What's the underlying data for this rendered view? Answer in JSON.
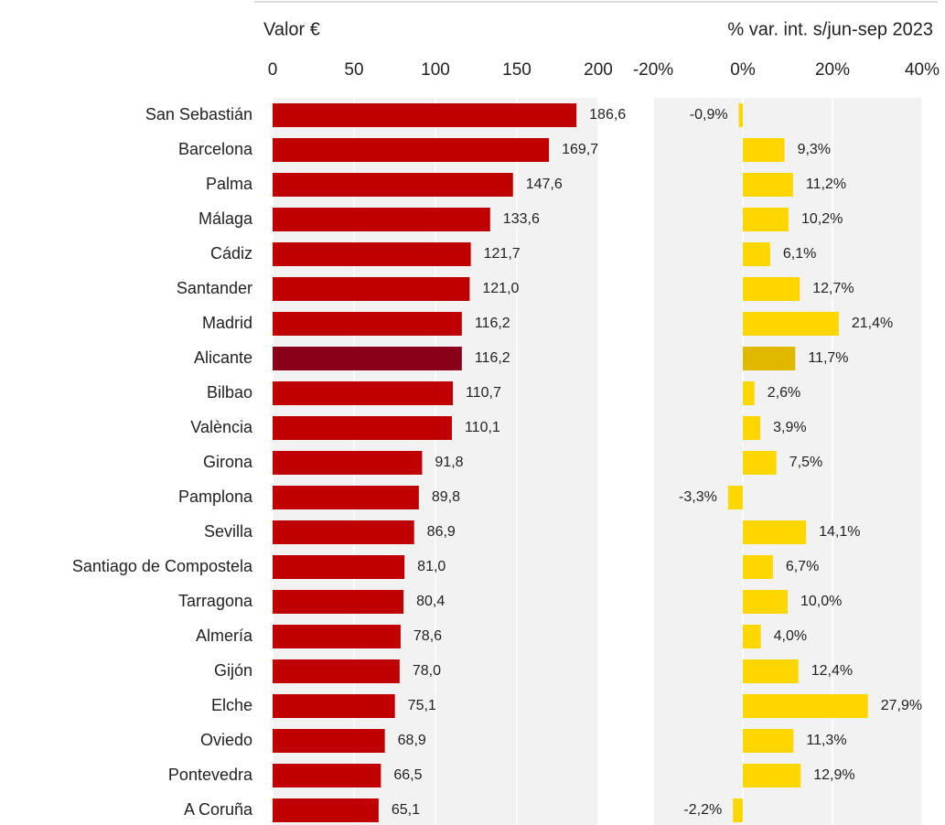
{
  "chart_data": [
    {
      "type": "bar",
      "orientation": "horizontal",
      "title": "Valor €",
      "categories": [
        "San Sebastián",
        "Barcelona",
        "Palma",
        "Málaga",
        "Cádiz",
        "Santander",
        "Madrid",
        "Alicante",
        "Bilbao",
        "València",
        "Girona",
        "Pamplona",
        "Sevilla",
        "Santiago de Compostela",
        "Tarragona",
        "Almería",
        "Gijón",
        "Elche",
        "Oviedo",
        "Pontevedra",
        "A Coruña"
      ],
      "values": [
        186.6,
        169.7,
        147.6,
        133.6,
        121.7,
        121.0,
        116.2,
        116.2,
        110.7,
        110.1,
        91.8,
        89.8,
        86.9,
        81.0,
        80.4,
        78.6,
        78.0,
        75.1,
        68.9,
        66.5,
        65.1
      ],
      "value_labels": [
        "186,6",
        "169,7",
        "147,6",
        "133,6",
        "121,7",
        "121,0",
        "116,2",
        "116,2",
        "110,7",
        "110,1",
        "91,8",
        "89,8",
        "86,9",
        "81,0",
        "80,4",
        "78,6",
        "78,0",
        "75,1",
        "68,9",
        "66,5",
        "65,1"
      ],
      "colors": [
        "#c00000",
        "#c00000",
        "#c00000",
        "#c00000",
        "#c00000",
        "#c00000",
        "#c00000",
        "#8b0019",
        "#c00000",
        "#c00000",
        "#c00000",
        "#c00000",
        "#c00000",
        "#c00000",
        "#c00000",
        "#c00000",
        "#c00000",
        "#c00000",
        "#c00000",
        "#c00000",
        "#c00000"
      ],
      "xlim": [
        0,
        200
      ],
      "xticks": [
        0,
        50,
        100,
        150,
        200
      ],
      "grid": true
    },
    {
      "type": "bar",
      "orientation": "horizontal",
      "title": "% var. int. s/jun-sep 2023",
      "values": [
        -0.9,
        9.3,
        11.2,
        10.2,
        6.1,
        12.7,
        21.4,
        11.7,
        2.6,
        3.9,
        7.5,
        -3.3,
        14.1,
        6.7,
        10.0,
        4.0,
        12.4,
        27.9,
        11.3,
        12.9,
        -2.2
      ],
      "value_labels": [
        "-0,9%",
        "9,3%",
        "11,2%",
        "10,2%",
        "6,1%",
        "12,7%",
        "21,4%",
        "11,7%",
        "2,6%",
        "3,9%",
        "7,5%",
        "-3,3%",
        "14,1%",
        "6,7%",
        "10,0%",
        "4,0%",
        "12,4%",
        "27,9%",
        "11,3%",
        "12,9%",
        "-2,2%"
      ],
      "colors": [
        "#ffd700",
        "#ffd700",
        "#ffd700",
        "#ffd700",
        "#ffd700",
        "#ffd700",
        "#ffd700",
        "#e0b800",
        "#ffd700",
        "#ffd700",
        "#ffd700",
        "#ffd700",
        "#ffd700",
        "#ffd700",
        "#ffd700",
        "#ffd700",
        "#ffd700",
        "#ffd700",
        "#ffd700",
        "#ffd700",
        "#ffd700"
      ],
      "xlim": [
        -20,
        40
      ],
      "xticks": [
        {
          "value": -20,
          "label": "-20%"
        },
        {
          "value": 0,
          "label": "0%"
        },
        {
          "value": 20,
          "label": "20%"
        },
        {
          "value": 40,
          "label": "40%"
        }
      ],
      "grid": true
    }
  ]
}
